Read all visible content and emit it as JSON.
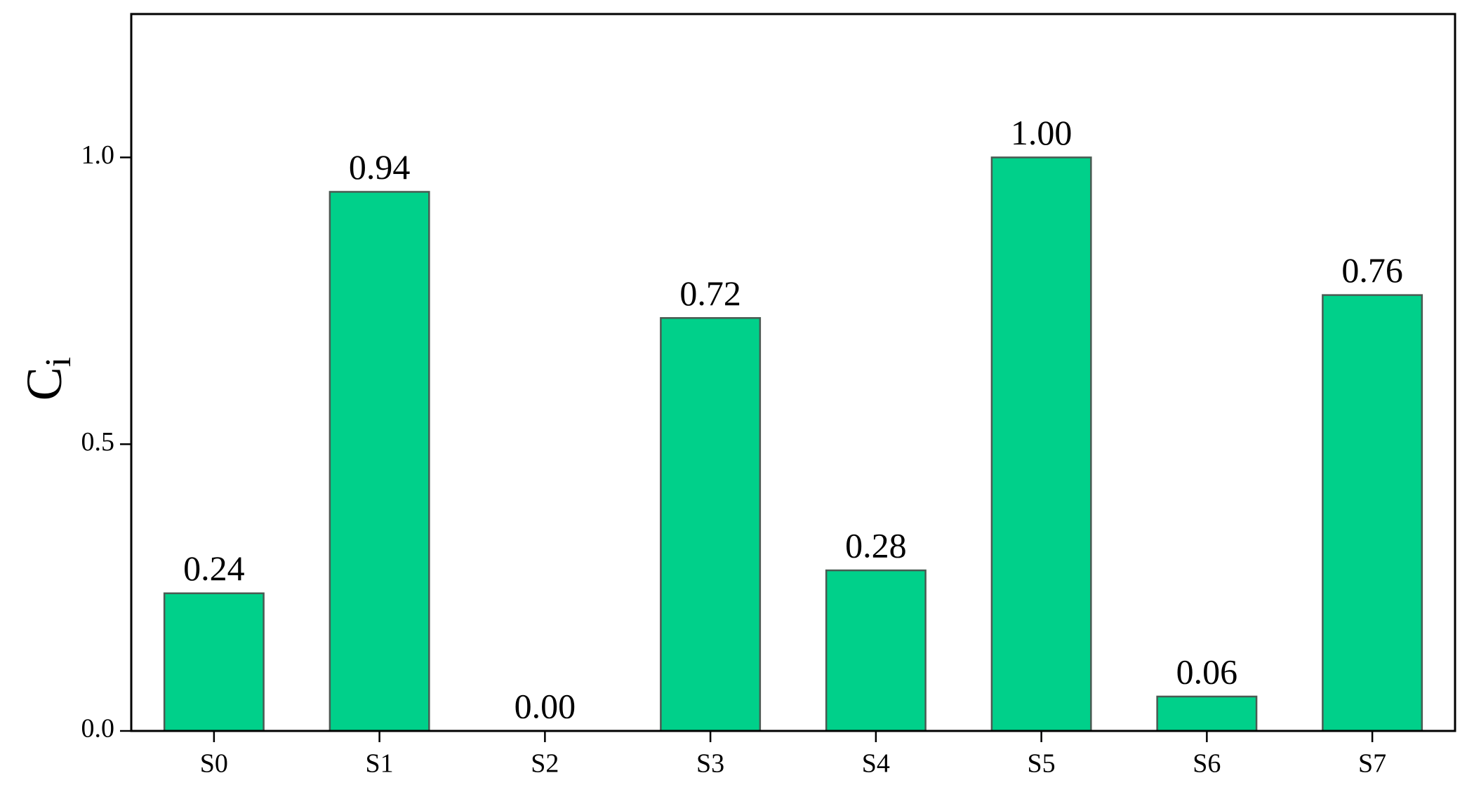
{
  "chart_data": {
    "type": "bar",
    "y_label": "C",
    "y_label_subscript": "i",
    "categories": [
      "S0",
      "S1",
      "S2",
      "S3",
      "S4",
      "S5",
      "S6",
      "S7"
    ],
    "values": [
      0.24,
      0.94,
      0.0,
      0.72,
      0.28,
      1.0,
      0.06,
      0.76
    ],
    "value_labels": [
      "0.24",
      "0.94",
      "0.00",
      "0.72",
      "0.28",
      "1.00",
      "0.06",
      "0.76"
    ],
    "color": "#00d08a",
    "ylim": [
      0,
      1.25
    ],
    "yticks": [
      {
        "value": 0,
        "label": "0.0"
      },
      {
        "value": 0.5,
        "label": "0.5"
      },
      {
        "value": 1,
        "label": "1.0"
      }
    ]
  }
}
